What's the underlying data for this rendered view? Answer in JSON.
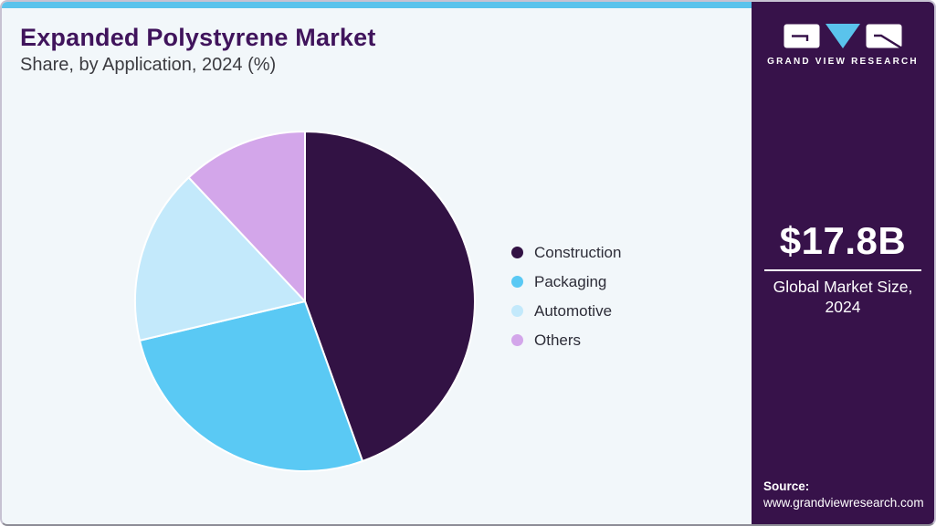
{
  "header": {
    "title": "Expanded Polystyrene Market",
    "subtitle": "Share, by Application, 2024 (%)"
  },
  "chart_data": {
    "type": "pie",
    "title": "Expanded Polystyrene Market Share, by Application, 2024 (%)",
    "unit": "%",
    "categories": [
      "Construction",
      "Packaging",
      "Automotive",
      "Others"
    ],
    "values": [
      44.5,
      26.8,
      16.7,
      12.0
    ],
    "colors": [
      "#321244",
      "#5ac9f4",
      "#c3e9fb",
      "#d3a6ea"
    ],
    "start_angle_deg": 0,
    "direction": "clockwise",
    "slice_border_color": "#ffffff",
    "legend_position": "right",
    "data_labels": false
  },
  "sidebar": {
    "brand": "GRAND VIEW RESEARCH",
    "market_size_value": "$17.8B",
    "market_size_label": "Global Market Size, 2024",
    "source_label": "Source:",
    "source_url": "www.grandviewresearch.com"
  },
  "theme": {
    "top_bar_color": "#5ac3ec",
    "canvas_background": "#f2f7fa",
    "sidebar_background": "#37124a",
    "logo_triangle_color": "#5ac3ec",
    "logo_stroke_color": "#37124a",
    "title_color": "#40145c",
    "subtitle_color": "#3b3b40",
    "legend_text_color": "#2d2d38"
  }
}
